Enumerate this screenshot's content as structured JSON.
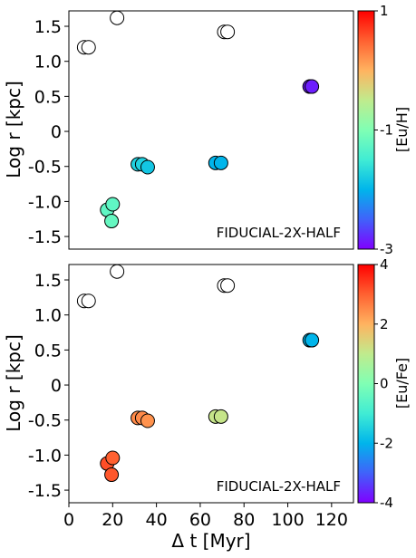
{
  "chart_data": [
    {
      "type": "scatter",
      "annotation": "FIDUCIAL-2X-HALF",
      "xlabel": "",
      "ylabel": "Log r [kpc]",
      "xlim": [
        0,
        130
      ],
      "ylim": [
        -1.68,
        1.72
      ],
      "yticks": [
        -1.5,
        -1.0,
        -0.5,
        0,
        0.5,
        1.0,
        1.5
      ],
      "ytick_labels": [
        "-1.5",
        "-1.0",
        "-0.5",
        "0",
        "0.5",
        "1.0",
        "1.5"
      ],
      "colorbar": {
        "label": "[Eu/H]",
        "range": [
          -3,
          1
        ],
        "ticks": [
          1,
          -1,
          -3
        ],
        "tick_labels": [
          "1",
          "-1",
          "-3"
        ]
      },
      "points": [
        {
          "x": 7,
          "y": 1.2,
          "c": null
        },
        {
          "x": 9,
          "y": 1.2,
          "c": null
        },
        {
          "x": 22,
          "y": 1.62,
          "c": null
        },
        {
          "x": 71,
          "y": 1.42,
          "c": null
        },
        {
          "x": 72.5,
          "y": 1.42,
          "c": null
        },
        {
          "x": 110,
          "y": 0.64,
          "c": -2.85
        },
        {
          "x": 111,
          "y": 0.64,
          "c": -2.85
        },
        {
          "x": 31.5,
          "y": -0.47,
          "c": -1.75
        },
        {
          "x": 33.5,
          "y": -0.47,
          "c": -1.75
        },
        {
          "x": 36,
          "y": -0.51,
          "c": -1.85
        },
        {
          "x": 67,
          "y": -0.45,
          "c": -2.0
        },
        {
          "x": 69.5,
          "y": -0.45,
          "c": -2.0
        },
        {
          "x": 17.5,
          "y": -1.12,
          "c": -1.25
        },
        {
          "x": 20,
          "y": -1.04,
          "c": -1.25
        },
        {
          "x": 19.5,
          "y": -1.28,
          "c": -1.2
        }
      ]
    },
    {
      "type": "scatter",
      "annotation": "FIDUCIAL-2X-HALF",
      "xlabel": "Δ t [Myr]",
      "ylabel": "Log r [kpc]",
      "xlim": [
        0,
        130
      ],
      "ylim": [
        -1.68,
        1.72
      ],
      "xticks": [
        0,
        20,
        40,
        60,
        80,
        100,
        120
      ],
      "xtick_labels": [
        "0",
        "20",
        "40",
        "60",
        "80",
        "100",
        "120"
      ],
      "yticks": [
        -1.5,
        -1.0,
        -0.5,
        0,
        0.5,
        1.0,
        1.5
      ],
      "ytick_labels": [
        "-1.5",
        "-1.0",
        "-0.5",
        "0",
        "0.5",
        "1.0",
        "1.5"
      ],
      "colorbar": {
        "label": "[Eu/Fe]",
        "range": [
          -4,
          4
        ],
        "ticks": [
          4,
          2,
          0,
          -2,
          -4
        ],
        "tick_labels": [
          "4",
          "2",
          "0",
          "-2",
          "-4"
        ]
      },
      "points": [
        {
          "x": 7,
          "y": 1.2,
          "c": null
        },
        {
          "x": 9,
          "y": 1.2,
          "c": null
        },
        {
          "x": 22,
          "y": 1.62,
          "c": null
        },
        {
          "x": 71,
          "y": 1.42,
          "c": null
        },
        {
          "x": 72.5,
          "y": 1.42,
          "c": null
        },
        {
          "x": 110,
          "y": 0.64,
          "c": -2.0
        },
        {
          "x": 111,
          "y": 0.64,
          "c": -2.0
        },
        {
          "x": 31.5,
          "y": -0.47,
          "c": 2.5
        },
        {
          "x": 33.5,
          "y": -0.47,
          "c": 2.5
        },
        {
          "x": 36,
          "y": -0.51,
          "c": 2.4
        },
        {
          "x": 67,
          "y": -0.45,
          "c": 1.1
        },
        {
          "x": 69.5,
          "y": -0.45,
          "c": 1.1
        },
        {
          "x": 17.5,
          "y": -1.12,
          "c": 3.2
        },
        {
          "x": 20,
          "y": -1.04,
          "c": 3.0
        },
        {
          "x": 19.5,
          "y": -1.28,
          "c": 3.1
        }
      ]
    }
  ]
}
